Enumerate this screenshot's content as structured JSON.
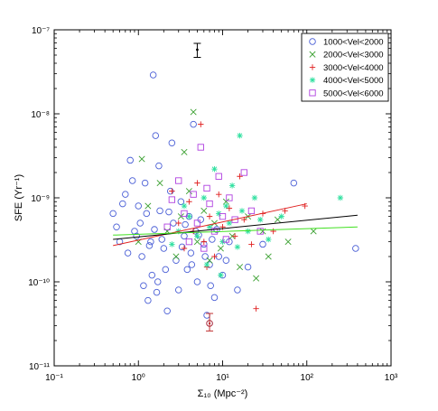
{
  "chart_data": {
    "type": "scatter",
    "xlabel": "Σ₁₀ (Mpc⁻²)",
    "ylabel": "SFE (Yr⁻¹)",
    "xscale": "log",
    "yscale": "log",
    "xlim": [
      0.1,
      1000
    ],
    "ylim": [
      1e-11,
      1e-07
    ],
    "x_ticks": [
      {
        "value": 0.1,
        "label": "10⁻¹"
      },
      {
        "value": 1,
        "label": "10⁰"
      },
      {
        "value": 10,
        "label": "10¹"
      },
      {
        "value": 100,
        "label": "10²"
      },
      {
        "value": 1000,
        "label": "10³"
      }
    ],
    "y_ticks": [
      {
        "value": 1e-11,
        "label": "10⁻¹¹"
      },
      {
        "value": 1e-10,
        "label": "10⁻¹⁰"
      },
      {
        "value": 1e-09,
        "label": "10⁻⁹"
      },
      {
        "value": 1e-08,
        "label": "10⁻⁸"
      },
      {
        "value": 1e-07,
        "label": "10⁻⁷"
      }
    ],
    "grid": false,
    "legend_position": "top-right",
    "series": [
      {
        "name": "1000<Vel<2000",
        "marker": "circle",
        "color": "#4a5fd6",
        "points": [
          [
            1.5,
            2.9e-08
          ],
          [
            1.6,
            5.5e-09
          ],
          [
            0.8,
            2.8e-09
          ],
          [
            2.5,
            4.5e-09
          ],
          [
            0.5,
            6.5e-10
          ],
          [
            0.6,
            3e-10
          ],
          [
            0.7,
            1.1e-09
          ],
          [
            0.9,
            4e-10
          ],
          [
            1.0,
            8e-10
          ],
          [
            1.1,
            2e-10
          ],
          [
            1.2,
            1.5e-09
          ],
          [
            1.3,
            6e-11
          ],
          [
            1.4,
            3e-10
          ],
          [
            1.7,
            1e-10
          ],
          [
            1.8,
            7e-10
          ],
          [
            2.0,
            2.5e-10
          ],
          [
            2.2,
            4.5e-11
          ],
          [
            2.4,
            1.2e-09
          ],
          [
            2.6,
            5e-10
          ],
          [
            2.8,
            1.8e-10
          ],
          [
            3.0,
            8e-11
          ],
          [
            3.2,
            9e-10
          ],
          [
            3.5,
            3.5e-10
          ],
          [
            3.8,
            1.4e-10
          ],
          [
            4.0,
            6e-10
          ],
          [
            4.2,
            2.2e-10
          ],
          [
            4.5,
            7.5e-09
          ],
          [
            4.8,
            4e-10
          ],
          [
            5.0,
            1e-10
          ],
          [
            5.5,
            5.5e-10
          ],
          [
            6.0,
            2.8e-10
          ],
          [
            6.5,
            4e-11
          ],
          [
            7.0,
            1.6e-10
          ],
          [
            7.5,
            3.2e-10
          ],
          [
            8.0,
            6.5e-11
          ],
          [
            9.0,
            2e-10
          ],
          [
            10.0,
            1.2e-10
          ],
          [
            12.0,
            3e-10
          ],
          [
            15.0,
            8e-11
          ],
          [
            0.55,
            4.5e-10
          ],
          [
            0.65,
            8.5e-10
          ],
          [
            0.75,
            2.2e-10
          ],
          [
            0.85,
            1.6e-09
          ],
          [
            0.95,
            3.5e-10
          ],
          [
            1.05,
            5e-10
          ],
          [
            1.15,
            9e-11
          ],
          [
            1.25,
            6.5e-10
          ],
          [
            1.35,
            2.7e-10
          ],
          [
            1.45,
            1.2e-10
          ],
          [
            1.55,
            4.2e-10
          ],
          [
            1.65,
            7.5e-11
          ],
          [
            1.75,
            2.4e-09
          ],
          [
            1.9,
            3.2e-10
          ],
          [
            2.1,
            1.4e-10
          ],
          [
            2.3,
            6.8e-10
          ],
          [
            3.3,
            2.6e-10
          ],
          [
            3.6,
            4.8e-10
          ],
          [
            4.3,
            1.6e-10
          ],
          [
            5.2,
            3.6e-10
          ],
          [
            6.2,
            2e-10
          ],
          [
            7.2,
            9e-11
          ],
          [
            8.5,
            4.2e-10
          ],
          [
            11.0,
            1.8e-10
          ],
          [
            20.0,
            1.5e-10
          ],
          [
            30.0,
            2.8e-10
          ],
          [
            70.0,
            1.5e-09
          ],
          [
            380.0,
            2.5e-10
          ],
          [
            7.0,
            3.2e-11
          ]
        ]
      },
      {
        "name": "2000<Vel<3000",
        "marker": "x",
        "color": "#3aa030",
        "points": [
          [
            4.5,
            1.05e-08
          ],
          [
            3.5,
            3.5e-09
          ],
          [
            1.0,
            3e-10
          ],
          [
            1.3,
            8e-10
          ],
          [
            1.8,
            1.5e-09
          ],
          [
            2.2,
            4e-10
          ],
          [
            2.8,
            2e-10
          ],
          [
            3.2,
            6e-10
          ],
          [
            4.0,
            1.2e-09
          ],
          [
            5.0,
            3e-10
          ],
          [
            6.0,
            7e-10
          ],
          [
            7.0,
            1.8e-10
          ],
          [
            8.0,
            5e-10
          ],
          [
            9.5,
            2.5e-10
          ],
          [
            11.0,
            9e-10
          ],
          [
            13.0,
            3.5e-10
          ],
          [
            16.0,
            1.5e-10
          ],
          [
            20.0,
            6e-10
          ],
          [
            25.0,
            1.1e-10
          ],
          [
            30.0,
            4e-10
          ],
          [
            35.0,
            2e-10
          ],
          [
            45.0,
            5.5e-10
          ],
          [
            60.0,
            3e-10
          ],
          [
            120.0,
            4e-10
          ],
          [
            1.1,
            2.9e-09
          ]
        ]
      },
      {
        "name": "3000<Vel<4000",
        "marker": "plus",
        "color": "#e02020",
        "points": [
          [
            5.5,
            7.5e-09
          ],
          [
            3.0,
            5e-10
          ],
          [
            3.5,
            2.5e-10
          ],
          [
            4.0,
            9e-10
          ],
          [
            4.5,
            4e-10
          ],
          [
            5.0,
            1.5e-09
          ],
          [
            6.0,
            3e-10
          ],
          [
            7.0,
            6e-10
          ],
          [
            8.0,
            2e-10
          ],
          [
            9.0,
            1.1e-09
          ],
          [
            10.0,
            4.5e-10
          ],
          [
            12.0,
            7.5e-10
          ],
          [
            14.0,
            3.5e-10
          ],
          [
            16.0,
            1.8e-09
          ],
          [
            18.0,
            5.5e-10
          ],
          [
            22.0,
            2.8e-10
          ],
          [
            25.0,
            4.8e-11
          ],
          [
            30.0,
            6.5e-10
          ],
          [
            40.0,
            4e-10
          ],
          [
            55.0,
            7e-10
          ],
          [
            95.0,
            8e-10
          ],
          [
            2.5,
            1.2e-09
          ],
          [
            6.5,
            1.5e-10
          ]
        ]
      },
      {
        "name": "4000<Vel<5000",
        "marker": "star",
        "color": "#30e0a0",
        "points": [
          [
            16.0,
            5.5e-09
          ],
          [
            4.0,
            6e-10
          ],
          [
            5.0,
            3.5e-10
          ],
          [
            6.0,
            1e-09
          ],
          [
            7.0,
            4.5e-10
          ],
          [
            8.0,
            2.2e-09
          ],
          [
            9.0,
            6.5e-10
          ],
          [
            10.0,
            3e-10
          ],
          [
            11.0,
            8e-10
          ],
          [
            12.0,
            5e-10
          ],
          [
            13.0,
            1.4e-09
          ],
          [
            15.0,
            2.6e-10
          ],
          [
            17.0,
            7e-10
          ],
          [
            20.0,
            4e-10
          ],
          [
            24.0,
            1e-09
          ],
          [
            28.0,
            5.5e-10
          ],
          [
            35.0,
            3.2e-10
          ],
          [
            50.0,
            6e-10
          ],
          [
            250.0,
            1e-09
          ],
          [
            3.0,
            4e-10
          ],
          [
            3.5,
            8e-10
          ],
          [
            2.5,
            2.8e-10
          ],
          [
            6.5,
            1.6e-10
          ],
          [
            9.5,
            1.2e-10
          ]
        ]
      },
      {
        "name": "5000<Vel<6000",
        "marker": "square",
        "color": "#b040e0",
        "points": [
          [
            5.5,
            4e-09
          ],
          [
            3.0,
            1.6e-09
          ],
          [
            3.5,
            6.5e-10
          ],
          [
            4.0,
            3e-10
          ],
          [
            4.5,
            1.1e-09
          ],
          [
            5.0,
            5e-10
          ],
          [
            6.0,
            2.5e-10
          ],
          [
            7.0,
            8.5e-10
          ],
          [
            8.0,
            4e-10
          ],
          [
            9.0,
            1.8e-09
          ],
          [
            10.0,
            6e-10
          ],
          [
            11.0,
            3.2e-10
          ],
          [
            12.0,
            1e-09
          ],
          [
            14.0,
            5.5e-10
          ],
          [
            18.0,
            2e-09
          ],
          [
            22.0,
            7e-10
          ],
          [
            28.0,
            4e-10
          ],
          [
            2.5,
            9.5e-10
          ],
          [
            2.2,
            4.5e-10
          ],
          [
            6.5,
            1.3e-09
          ]
        ]
      }
    ],
    "fit_lines": [
      {
        "color": "#e02020",
        "from": [
          0.5,
          2.7e-10
        ],
        "to": [
          100,
          8.5e-10
        ]
      },
      {
        "color": "#000000",
        "from": [
          0.5,
          3.2e-10
        ],
        "to": [
          400,
          6.2e-10
        ]
      },
      {
        "color": "#40e020",
        "from": [
          0.5,
          3.6e-10
        ],
        "to": [
          400,
          4.5e-10
        ]
      }
    ],
    "error_bars": [
      {
        "color": "#000000",
        "x": 5.0,
        "y": 5.8e-08,
        "low": 4.7e-08,
        "high": 6.9e-08
      },
      {
        "color": "#c03030",
        "x": 7.0,
        "y": 3.2e-11,
        "low": 2.6e-11,
        "high": 4.2e-11
      }
    ]
  }
}
